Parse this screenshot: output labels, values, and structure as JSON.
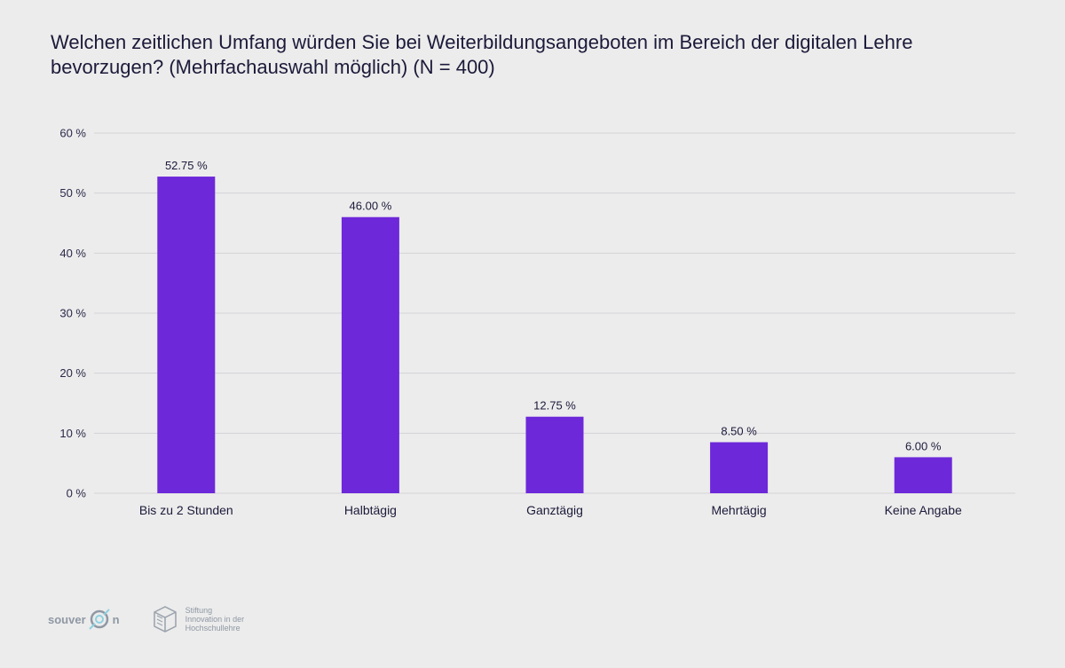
{
  "chart_data": {
    "type": "bar",
    "title": "Welchen zeitlichen Umfang würden Sie bei Weiterbildungsangeboten im Bereich der digitalen Lehre bevorzugen? (Mehrfachauswahl möglich) (N = 400)",
    "categories": [
      "Bis zu 2 Stunden",
      "Halbtägig",
      "Ganztägig",
      "Mehrtägig",
      "Keine Angabe"
    ],
    "values": [
      52.75,
      46.0,
      12.75,
      8.5,
      6.0
    ],
    "value_labels": [
      "52.75 %",
      "46.00 %",
      "12.75 %",
      "8.50 %",
      "6.00 %"
    ],
    "ylim": [
      0,
      60
    ],
    "yticks": [
      0,
      10,
      20,
      30,
      40,
      50,
      60
    ],
    "ytick_labels": [
      "0 %",
      "10 %",
      "20 %",
      "30 %",
      "40 %",
      "50 %",
      "60 %"
    ],
    "xlabel": "",
    "ylabel": "",
    "grid": true,
    "bar_color": "#6d28d9"
  },
  "footer": {
    "logo1_text": "souver",
    "logo1_suffix": "n",
    "logo2_lines": [
      "Stiftung",
      "Innovation in der",
      "Hochschullehre"
    ]
  }
}
